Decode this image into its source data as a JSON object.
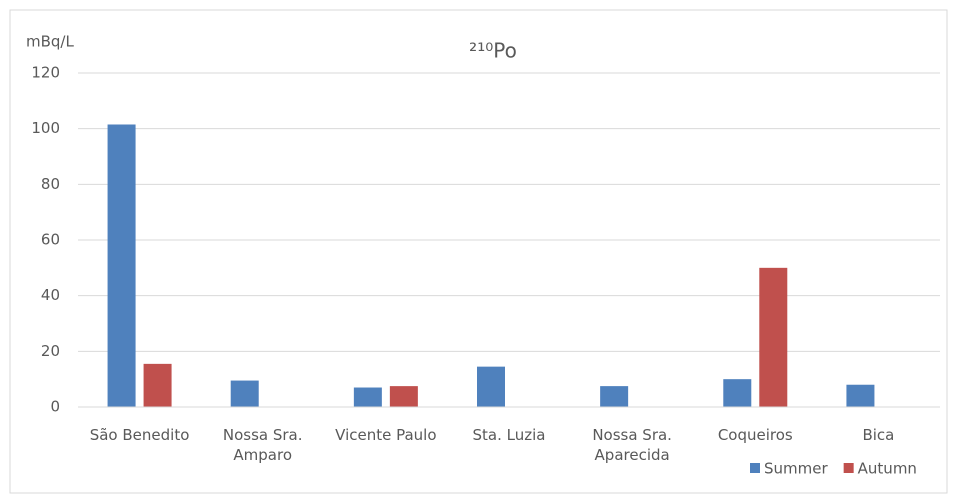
{
  "chart_data": {
    "type": "bar",
    "title": "²¹⁰Po",
    "y_label": "mBq/L",
    "categories": [
      "São Benedito",
      "Nossa Sra. Amparo",
      "Vicente Paulo",
      "Sta. Luzia",
      "Nossa Sra. Aparecida",
      "Coqueiros",
      "Bica"
    ],
    "series": [
      {
        "name": "Summer",
        "color": "#4f81bd",
        "values": [
          101.5,
          9.5,
          7,
          14.5,
          7.5,
          10,
          8
        ]
      },
      {
        "name": "Autumn",
        "color": "#c0504d",
        "values": [
          15.5,
          null,
          7.5,
          null,
          null,
          50,
          null
        ]
      }
    ],
    "ylim": [
      0,
      120
    ],
    "yticks": [
      0,
      20,
      40,
      60,
      80,
      100,
      120
    ],
    "grid": true,
    "legend": "bottom-right"
  }
}
